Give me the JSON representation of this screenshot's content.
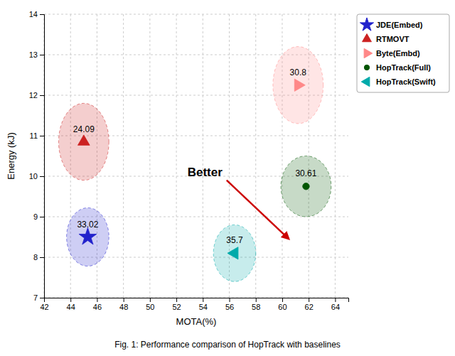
{
  "chart_data": {
    "type": "scatter",
    "xlabel": "MOTA(%)",
    "ylabel": "Energy (kJ)",
    "caption": "Fig. 1: Performance comparison of HopTrack with baselines",
    "xlim": [
      42,
      65
    ],
    "ylim": [
      7,
      14
    ],
    "xticks": [
      42,
      44,
      46,
      48,
      50,
      52,
      54,
      56,
      58,
      60,
      62,
      64
    ],
    "yticks": [
      7,
      8,
      9,
      10,
      11,
      12,
      13,
      14
    ],
    "grid": true,
    "legend": "upper right",
    "series": [
      {
        "name": "JDE(Embed)",
        "color": "#2222cc",
        "marker": "star",
        "x": [
          45.3
        ],
        "values": [
          8.5
        ],
        "bubble_rx": [
          1.6
        ],
        "bubble_ry": [
          0.72
        ],
        "point_labels": [
          "33.02"
        ]
      },
      {
        "name": "RTMOVT",
        "color": "#cc2222",
        "marker": "triangle-up",
        "x": [
          45.0
        ],
        "values": [
          10.85
        ],
        "bubble_rx": [
          1.9
        ],
        "bubble_ry": [
          0.95
        ],
        "point_labels": [
          "24.09"
        ]
      },
      {
        "name": "Byte(Embd)",
        "color": "#ff8888",
        "marker": "triangle-right",
        "x": [
          61.2
        ],
        "values": [
          12.25
        ],
        "bubble_rx": [
          1.9
        ],
        "bubble_ry": [
          0.95
        ],
        "point_labels": [
          "30.8"
        ]
      },
      {
        "name": "HopTrack(Full)",
        "color": "#005500",
        "marker": "circle",
        "x": [
          61.8
        ],
        "values": [
          9.75
        ],
        "bubble_rx": [
          1.9
        ],
        "bubble_ry": [
          0.75
        ],
        "point_labels": [
          "30.61"
        ]
      },
      {
        "name": "HopTrack(Swift)",
        "color": "#00aaaa",
        "marker": "triangle-left",
        "x": [
          56.4
        ],
        "values": [
          8.1
        ],
        "bubble_rx": [
          1.6
        ],
        "bubble_ry": [
          0.7
        ],
        "point_labels": [
          "35.7"
        ]
      }
    ],
    "annotations": [
      {
        "text": "Better",
        "color": "#cc0000",
        "x": [
          55.8,
          60.5
        ],
        "y": [
          9.9,
          8.45
        ]
      }
    ]
  }
}
